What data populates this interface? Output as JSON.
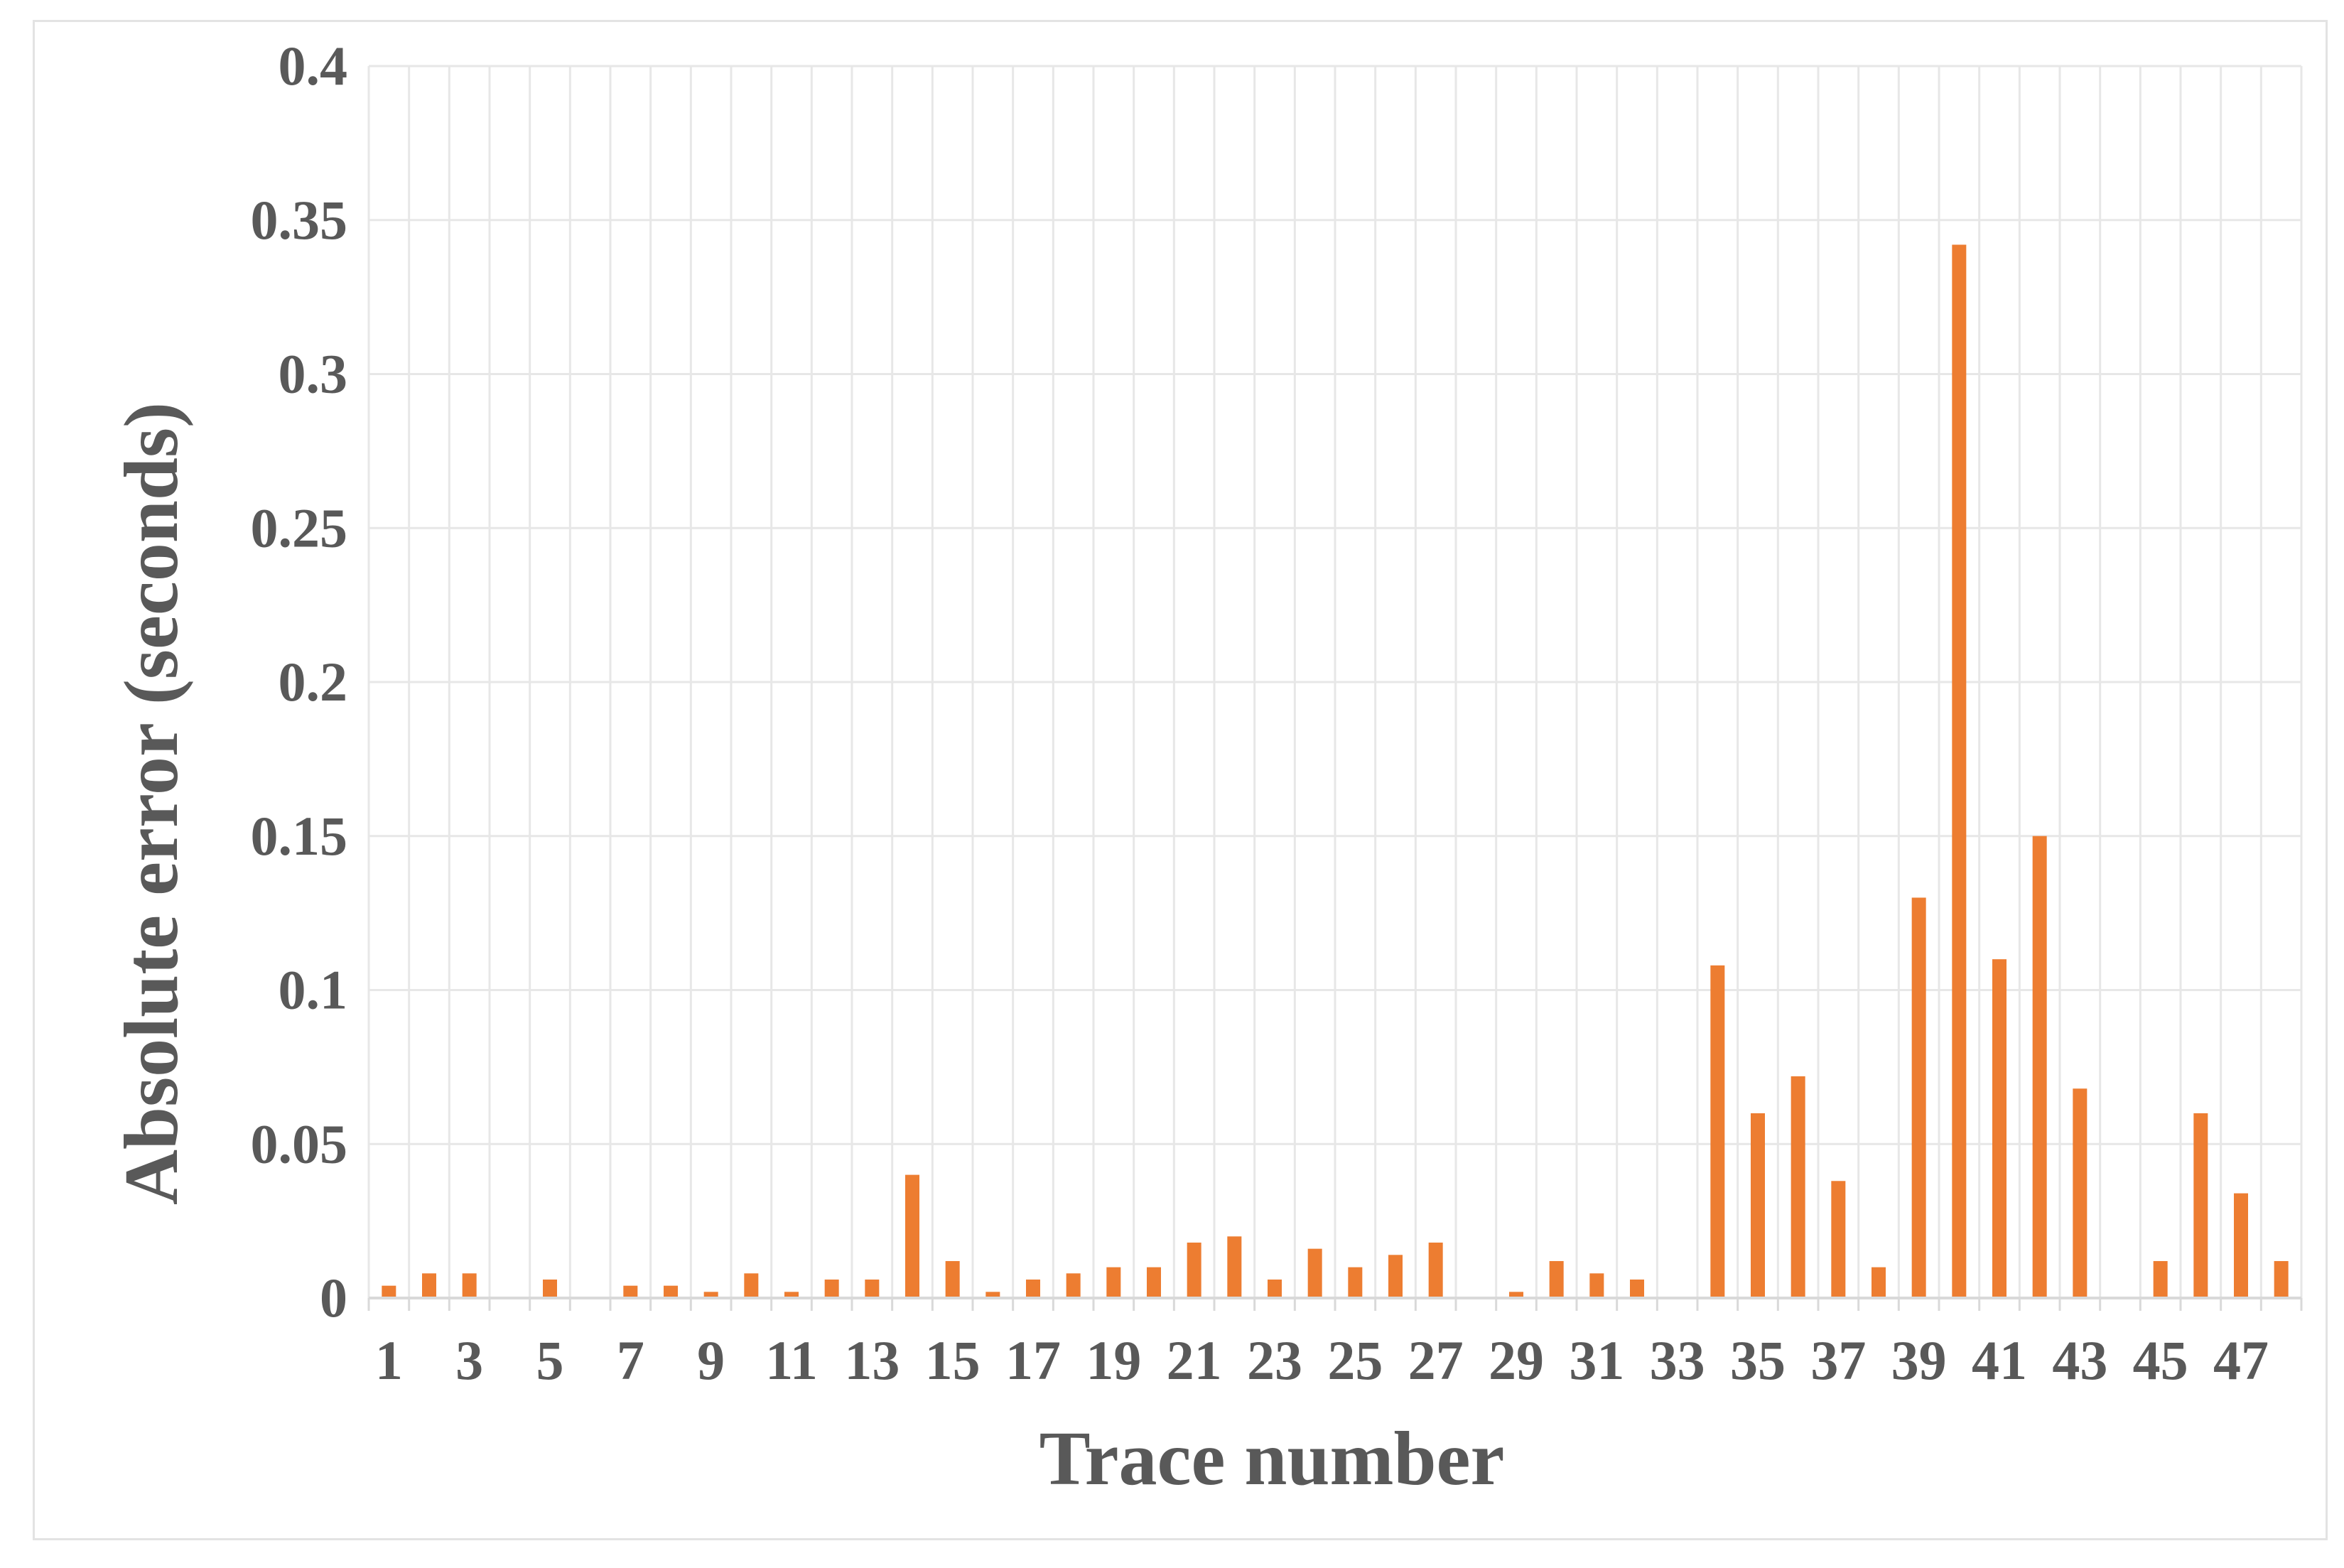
{
  "chart_data": {
    "type": "bar",
    "xlabel": "Trace number",
    "ylabel": "Absolute error (seconds)",
    "ylim": [
      0,
      0.4
    ],
    "yticks": [
      "0",
      "0.05",
      "0.1",
      "0.15",
      "0.2",
      "0.25",
      "0.3",
      "0.35",
      "0.4"
    ],
    "grid": true,
    "bar_color": "#ED7D31",
    "grid_color": "#E7E7E7",
    "text_color": "#595959",
    "categories": [
      "1",
      "2",
      "3",
      "4",
      "5",
      "6",
      "7",
      "8",
      "9",
      "10",
      "11",
      "12",
      "13",
      "14",
      "15",
      "16",
      "17",
      "18",
      "19",
      "20",
      "21",
      "22",
      "23",
      "24",
      "25",
      "26",
      "27",
      "28",
      "29",
      "30",
      "31",
      "32",
      "33",
      "34",
      "35",
      "36",
      "37",
      "38",
      "39",
      "40",
      "41",
      "42",
      "43",
      "44",
      "45",
      "46",
      "47",
      "48"
    ],
    "visible_tick_labels": [
      "1",
      "3",
      "5",
      "7",
      "9",
      "11",
      "13",
      "15",
      "17",
      "19",
      "21",
      "23",
      "25",
      "27",
      "29",
      "31",
      "33",
      "35",
      "37",
      "39",
      "41",
      "43",
      "45",
      "47"
    ],
    "values": [
      0.004,
      0.008,
      0.008,
      0,
      0.006,
      0,
      0.004,
      0.004,
      0.002,
      0.008,
      0.002,
      0.006,
      0.006,
      0.04,
      0.012,
      0.002,
      0.006,
      0.008,
      0.01,
      0.01,
      0.018,
      0.02,
      0.006,
      0.016,
      0.01,
      0.014,
      0.018,
      0,
      0.002,
      0.012,
      0.008,
      0.006,
      0,
      0.108,
      0.06,
      0.072,
      0.038,
      0.01,
      0.13,
      0.342,
      0.11,
      0.15,
      0.068,
      0,
      0.012,
      0.06,
      0.034,
      0.012
    ]
  }
}
